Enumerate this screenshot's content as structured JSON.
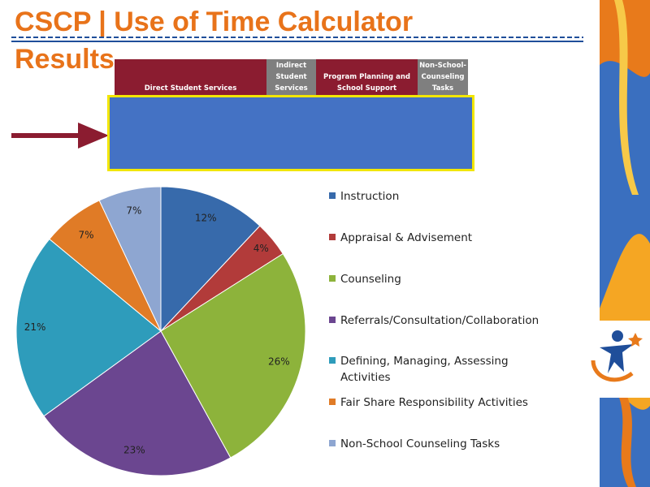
{
  "page": {
    "title_line1": "CSCP | Use of Time Calculator",
    "title_line2": "Results"
  },
  "band": {
    "direct": "Direct Student Services",
    "indirect": [
      "Indirect",
      "Student",
      "Services"
    ],
    "program": [
      "Program Planning and",
      "School Support"
    ],
    "nonschool": [
      "Non-School-",
      "Counseling",
      "Tasks"
    ]
  },
  "colors": {
    "title": "#E8731A",
    "maroon": "#8B1C30",
    "gray": "#7F7F7F",
    "blue_box": "#4472C4",
    "blue_box_border": "#F2E600"
  },
  "chart_data": {
    "type": "pie",
    "categories": [
      "Instruction",
      "Appraisal & Advisement",
      "Counseling",
      "Referrals/Consultation/Collaboration",
      "Defining, Managing, Assessing Activities",
      "Fair Share Responsibility Activities",
      "Non-School Counseling Tasks"
    ],
    "values": [
      12,
      4,
      26,
      23,
      21,
      7,
      7
    ],
    "labels": [
      "12%",
      "4%",
      "26%",
      "23%",
      "21%",
      "7%",
      "7%"
    ],
    "colors": [
      "#376AAB",
      "#B23B3A",
      "#8DB33B",
      "#6B4690",
      "#2E9CBB",
      "#E07B26",
      "#8EA6D1"
    ],
    "legend_lines": [
      [
        "Instruction"
      ],
      [
        "Appraisal & Advisement"
      ],
      [
        "Counseling"
      ],
      [
        "Referrals/Consultation/Collaboration"
      ],
      [
        "Defining, Managing, Assessing",
        "Activities"
      ],
      [
        "Fair Share Responsibility Activities"
      ],
      [
        "Non-School Counseling Tasks"
      ]
    ],
    "legend_position": "right"
  }
}
